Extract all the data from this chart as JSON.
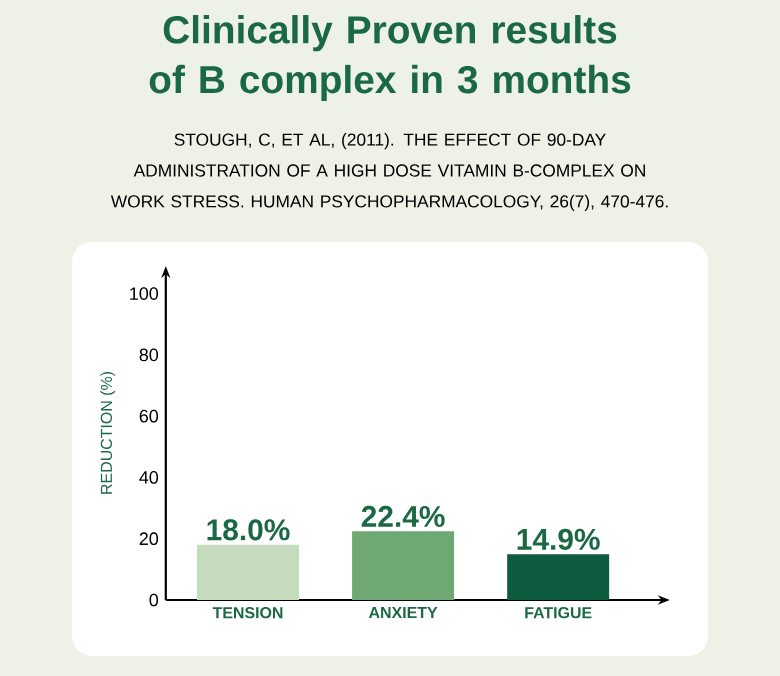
{
  "chart_data": {
    "type": "bar",
    "title": "Clinically Proven results of B complex in 3 months",
    "subtitle": "STOUGH, C, ET AL, (2011). THE EFFECT OF 90-DAY ADMINISTRATION OF A HIGH DOSE VITAMIN B-COMPLEX ON WORK STRESS. HUMAN PSYCHOPHARMACOLOGY, 26(7), 470-476.",
    "ylabel": "REDUCTION (%)",
    "categories": [
      "TENSION",
      "ANXIETY",
      "FATIGUE"
    ],
    "values": [
      18.0,
      22.4,
      14.9
    ],
    "value_labels": [
      "18.0%",
      "22.4%",
      "14.9%"
    ],
    "colors": [
      "#c5dbbd",
      "#6ea872",
      "#0e5c40"
    ],
    "ylim": [
      0,
      109
    ],
    "yticks": [
      0,
      20,
      40,
      60,
      80,
      100
    ],
    "grid": false
  }
}
